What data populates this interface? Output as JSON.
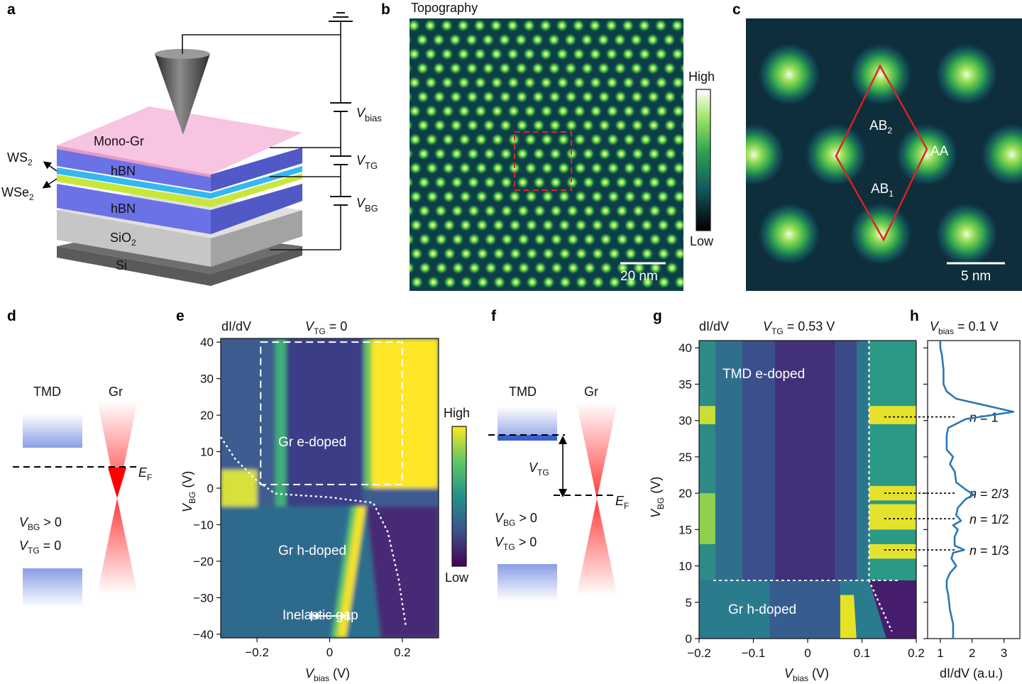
{
  "panels": {
    "a": {
      "label": "a",
      "layers": [
        "Mono-Gr",
        "hBN",
        "hBN",
        "SiO",
        "Si"
      ],
      "sio_sub": "2",
      "ws2": "WS",
      "ws2_sub": "2",
      "wse2": "WSe",
      "wse2_sub": "2",
      "voltages": [
        {
          "main": "V",
          "sub": "bias"
        },
        {
          "main": "V",
          "sub": "TG"
        },
        {
          "main": "V",
          "sub": "BG"
        }
      ]
    },
    "b": {
      "label": "b",
      "title": "Topography",
      "scale": "20 nm",
      "cbar_high": "High",
      "cbar_low": "Low"
    },
    "c": {
      "label": "c",
      "scale": "5 nm",
      "ab2": "AB",
      "ab2_sub": "2",
      "ab1": "AB",
      "ab1_sub": "1",
      "aa": "AA"
    },
    "d": {
      "label": "d",
      "tmd": "TMD",
      "gr": "Gr",
      "ef": "E",
      "ef_sub": "F",
      "cond1": {
        "v": "V",
        "sub": "BG",
        "rest": " > 0"
      },
      "cond2": {
        "v": "V",
        "sub": "TG",
        "rest": " = 0"
      }
    },
    "e": {
      "label": "e",
      "didv": "dI/dV",
      "vtg": {
        "v": "V",
        "sub": "TG",
        "rest": " = 0"
      },
      "region1": "Gr e-doped",
      "region2": "Gr h-doped",
      "gap": "Inelastic gap",
      "xlabel": {
        "v": "V",
        "sub": "bias",
        "rest": " (V)"
      },
      "ylabel": {
        "v": "V",
        "sub": "BG",
        "rest": " (V)"
      },
      "cbar_high": "High",
      "cbar_low": "Low"
    },
    "f": {
      "label": "f",
      "tmd": "TMD",
      "gr": "Gr",
      "vtg": "V",
      "vtg_sub": "TG",
      "ef": "E",
      "ef_sub": "F",
      "cond1": {
        "v": "V",
        "sub": "BG",
        "rest": " > 0"
      },
      "cond2": {
        "v": "V",
        "sub": "TG",
        "rest": " > 0"
      }
    },
    "g": {
      "label": "g",
      "didv": "dI/dV",
      "vtg": {
        "v": "V",
        "sub": "TG",
        "rest": " = 0.53 V"
      },
      "region1": "TMD e-doped",
      "region2": "Gr h-doped",
      "xlabel": {
        "v": "V",
        "sub": "bias",
        "rest": " (V)"
      },
      "ylabel": {
        "v": "V",
        "sub": "BG",
        "rest": " (V)"
      }
    },
    "h": {
      "label": "h",
      "title": {
        "v": "V",
        "sub": "bias",
        "rest": " = 0.1 V"
      },
      "xlabel": "dI/dV (a.u.)",
      "fillings": [
        "n = 1",
        "n = 2/3",
        "n = 1/2",
        "n = 1/3"
      ]
    }
  },
  "chart_data": [
    {
      "id": "e",
      "type": "heatmap",
      "title": "dI/dV, V_TG = 0",
      "xlabel": "V_bias (V)",
      "ylabel": "V_BG (V)",
      "xlim": [
        -0.3,
        0.3
      ],
      "ylim": [
        -41,
        41
      ],
      "xticks": [
        -0.2,
        0,
        0.2
      ],
      "xtick_labels": [
        "−0.2",
        "0",
        "0.2"
      ],
      "yticks": [
        40,
        30,
        20,
        10,
        0,
        -10,
        -20,
        -30,
        -40
      ],
      "ytick_labels": [
        "40",
        "30",
        "20",
        "10",
        "0",
        "−10",
        "−20",
        "−30",
        "−40"
      ],
      "colormap": "viridis",
      "bright_regions": [
        {
          "x": [
            0.11,
            0.3
          ],
          "y": [
            0,
            41
          ]
        },
        {
          "x": [
            -0.3,
            -0.2
          ],
          "y": [
            -5,
            5
          ]
        }
      ],
      "dashed_box": {
        "x": [
          -0.19,
          0.2
        ],
        "y": [
          1,
          40
        ]
      },
      "guide_curve": [
        [
          -0.3,
          14
        ],
        [
          -0.26,
          8
        ],
        [
          -0.2,
          2
        ],
        [
          -0.15,
          -1.5
        ],
        [
          0,
          -2.5
        ],
        [
          0.12,
          -4
        ],
        [
          0.16,
          -12
        ],
        [
          0.19,
          -25
        ],
        [
          0.21,
          -38
        ]
      ],
      "gap_arrow": {
        "x": [
          -0.05,
          0.05
        ],
        "y": -35
      }
    },
    {
      "id": "g",
      "type": "heatmap",
      "title": "dI/dV, V_TG = 0.53 V",
      "xlabel": "V_bias (V)",
      "ylabel": "V_BG (V)",
      "xlim": [
        -0.2,
        0.2
      ],
      "ylim": [
        0,
        41
      ],
      "xticks": [
        -0.2,
        -0.1,
        0,
        0.1,
        0.2
      ],
      "xtick_labels": [
        "−0.2",
        "−0.1",
        "0",
        "0.1",
        "0.2"
      ],
      "yticks": [
        0,
        5,
        10,
        15,
        20,
        25,
        30,
        35,
        40
      ],
      "ytick_labels": [
        "0",
        "5",
        "10",
        "15",
        "20",
        "25",
        "30",
        "35",
        "40"
      ],
      "colormap": "viridis",
      "bright_bands_V_BG": [
        31,
        20,
        16,
        12
      ],
      "vertical_dashed_x": 0.113,
      "horizontal_dashed_y": 8,
      "guide_curve": [
        [
          0.113,
          8
        ],
        [
          0.125,
          6
        ],
        [
          0.14,
          3.5
        ],
        [
          0.155,
          1
        ]
      ]
    },
    {
      "id": "h",
      "type": "line",
      "title": "V_bias = 0.1 V",
      "xlabel": "dI/dV (a.u.)",
      "xlim": [
        0.6,
        3.5
      ],
      "ylim": [
        0,
        41
      ],
      "xticks": [
        1,
        2,
        3
      ],
      "xtick_labels": [
        "1",
        "2",
        "3"
      ],
      "series": [
        {
          "name": "dI/dV profile",
          "points": [
            [
              1.4,
              0
            ],
            [
              1.4,
              2
            ],
            [
              1.3,
              4
            ],
            [
              1.25,
              6
            ],
            [
              1.2,
              7
            ],
            [
              1.2,
              8
            ],
            [
              1.3,
              9
            ],
            [
              1.5,
              10
            ],
            [
              1.35,
              11
            ],
            [
              1.4,
              11.8
            ],
            [
              1.75,
              12.2
            ],
            [
              1.45,
              12.8
            ],
            [
              1.45,
              14
            ],
            [
              1.55,
              15
            ],
            [
              1.4,
              15.6
            ],
            [
              1.65,
              16.2
            ],
            [
              1.5,
              17
            ],
            [
              1.55,
              18
            ],
            [
              1.8,
              19.2
            ],
            [
              2.05,
              19.8
            ],
            [
              1.8,
              20.5
            ],
            [
              1.5,
              21.5
            ],
            [
              1.45,
              23
            ],
            [
              1.3,
              24
            ],
            [
              1.4,
              25
            ],
            [
              1.2,
              26
            ],
            [
              1.2,
              27
            ],
            [
              1.2,
              28
            ],
            [
              1.25,
              29
            ],
            [
              1.8,
              30.2
            ],
            [
              3.3,
              31.2
            ],
            [
              2.5,
              32
            ],
            [
              1.5,
              33
            ],
            [
              1.2,
              34
            ],
            [
              1.1,
              35
            ],
            [
              1.1,
              37
            ],
            [
              1.05,
              39
            ],
            [
              1.0,
              40
            ],
            [
              1.0,
              41
            ]
          ]
        }
      ],
      "annotations_y": [
        30.5,
        20,
        16.5,
        12.2
      ]
    }
  ]
}
